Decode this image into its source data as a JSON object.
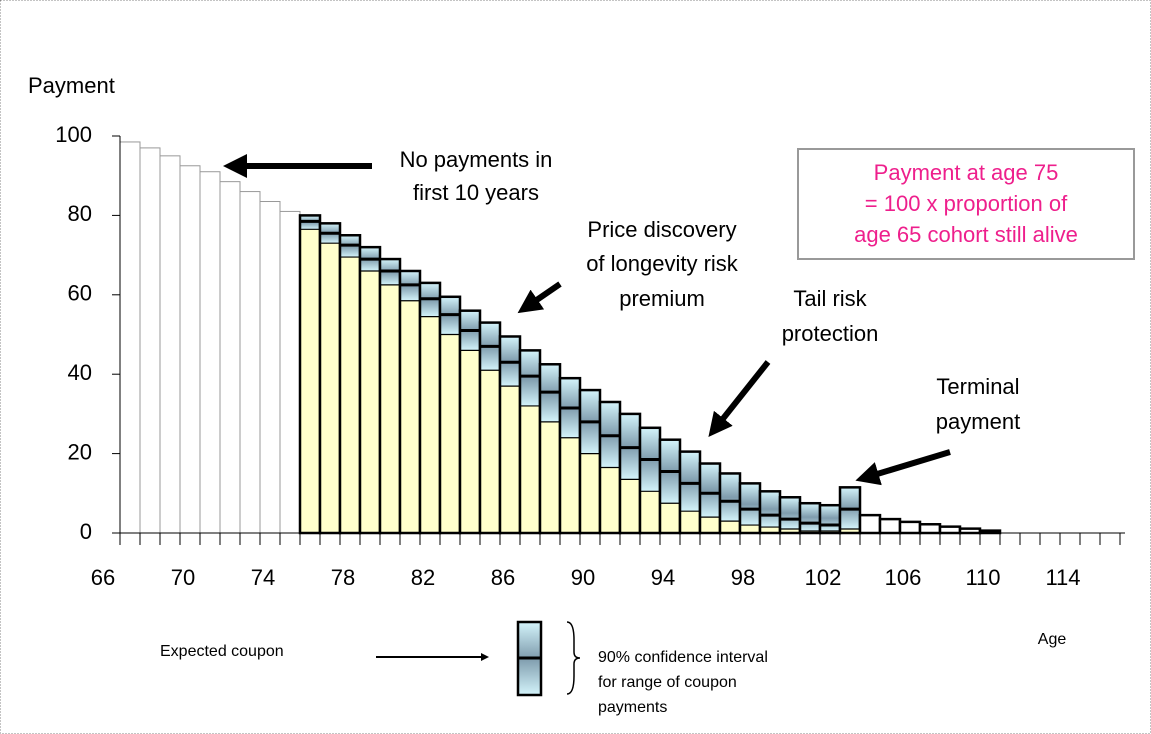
{
  "chart_data": {
    "type": "bar",
    "y_axis_label": "Payment",
    "x_axis_label": "Age",
    "categories": [
      "66",
      null,
      null,
      null,
      "70",
      null,
      null,
      null,
      "74",
      null,
      null,
      null,
      "78",
      null,
      null,
      null,
      "82",
      null,
      null,
      null,
      "86",
      null,
      null,
      null,
      "90",
      null,
      null,
      null,
      "94",
      null,
      null,
      null,
      "98",
      null,
      null,
      null,
      "102",
      null,
      null,
      null,
      "106",
      null,
      null,
      null,
      "110",
      null,
      null,
      null,
      "114",
      null
    ],
    "survival_values": [
      98.5,
      97,
      95,
      92.5,
      91,
      88.5,
      86,
      83.5,
      81,
      null,
      null,
      null,
      null,
      null,
      null,
      null,
      null,
      null,
      null,
      null,
      null,
      null,
      null,
      null,
      null,
      null,
      null,
      null,
      null,
      null,
      null,
      null,
      null,
      null,
      null,
      null,
      null,
      null,
      null,
      null,
      null,
      null,
      null,
      null,
      null,
      null,
      null,
      null,
      null,
      null
    ],
    "upper": [
      null,
      null,
      null,
      null,
      null,
      null,
      null,
      null,
      null,
      80,
      78,
      75,
      72,
      69,
      66,
      63,
      59.5,
      56,
      53,
      49.5,
      46,
      42.5,
      39,
      36,
      33,
      30,
      26.5,
      23.5,
      20.5,
      17.5,
      15,
      12.5,
      10.5,
      9,
      7.5,
      7,
      11.5,
      null,
      null,
      null,
      null,
      null,
      null,
      null,
      null,
      null,
      null,
      null,
      null,
      null
    ],
    "expected": [
      null,
      null,
      null,
      null,
      null,
      null,
      null,
      null,
      null,
      78.5,
      75.5,
      72.5,
      69,
      66,
      62.5,
      59,
      55,
      51,
      47,
      43,
      39.5,
      35.5,
      31.5,
      28,
      24.5,
      21.5,
      18.5,
      15.5,
      12.5,
      10,
      8,
      6,
      4.5,
      3.5,
      2.5,
      2,
      6,
      null,
      null,
      null,
      null,
      null,
      null,
      null,
      null,
      null,
      null,
      null,
      null,
      null
    ],
    "lower": [
      null,
      null,
      null,
      null,
      null,
      null,
      null,
      null,
      null,
      76.5,
      73,
      69.5,
      66,
      62.5,
      58.5,
      54.5,
      50,
      46,
      41,
      37,
      32,
      28,
      24,
      20,
      16.5,
      13.5,
      10.5,
      7.5,
      5.5,
      4,
      3,
      2,
      1.5,
      1,
      0.5,
      0.5,
      1,
      null,
      null,
      null,
      null,
      null,
      null,
      null,
      null,
      null,
      null,
      null,
      null,
      null
    ],
    "tail_values": [
      null,
      null,
      null,
      null,
      null,
      null,
      null,
      null,
      null,
      null,
      null,
      null,
      null,
      null,
      null,
      null,
      null,
      null,
      null,
      null,
      null,
      null,
      null,
      null,
      null,
      null,
      null,
      null,
      null,
      null,
      null,
      null,
      null,
      null,
      null,
      null,
      null,
      4.5,
      3.5,
      2.8,
      2.2,
      1.6,
      1.1,
      0.6,
      null,
      null,
      null,
      null,
      null,
      null
    ],
    "ylim": [
      0,
      100
    ],
    "yticks": [
      0,
      20,
      40,
      60,
      80,
      100
    ],
    "annotations": {
      "no_payments": [
        "No payments in",
        "first 10 years"
      ],
      "price_discovery": [
        "Price discovery",
        "of longevity risk",
        "premium"
      ],
      "tail_risk": [
        "Tail risk",
        "protection"
      ],
      "terminal": [
        "Terminal",
        "payment"
      ],
      "box": [
        "Payment at age 75",
        "= 100 x proportion of",
        "age 65 cohort still alive"
      ]
    },
    "legend": {
      "expected_coupon": "Expected coupon",
      "interval": [
        "90% confidence interval",
        "for range of coupon",
        "payments"
      ]
    }
  }
}
